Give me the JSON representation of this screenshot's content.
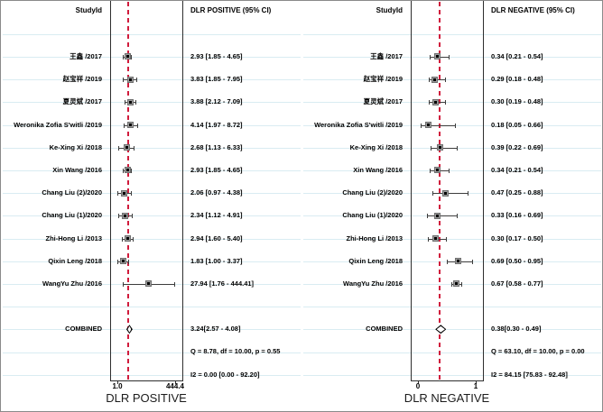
{
  "colors": {
    "ref_line": "#d01b3c",
    "gridline": "#d9ecf2",
    "box_border": "#2e2e2e",
    "ci_line": "#3d3d3d",
    "marker_fill": "#9c9c9c",
    "marker_center": "#000000"
  },
  "chart_data": {
    "type": "scatter",
    "subtype": "forest-plot",
    "panels": [
      {
        "id": "dlr-positive",
        "study_header": "StudyId",
        "value_header": "DLR POSITIVE (95% CI)",
        "axis": {
          "scale": "log",
          "min": 1.0,
          "max": 444.4,
          "tick_labels": [
            "1.0",
            "444.4"
          ],
          "title": "DLR POSITIVE"
        },
        "ref_line_value": 3.24,
        "studies": [
          {
            "label": "王鑫 /2017",
            "value": 2.93,
            "lo": 1.85,
            "hi": 4.65,
            "ci_text": "2.93 [1.85 - 4.65]"
          },
          {
            "label": "赵宝祥 /2019",
            "value": 3.83,
            "lo": 1.85,
            "hi": 7.95,
            "ci_text": "3.83 [1.85 - 7.95]"
          },
          {
            "label": "夏灵斌 /2017",
            "value": 3.88,
            "lo": 2.12,
            "hi": 7.09,
            "ci_text": "3.88 [2.12 - 7.09]"
          },
          {
            "label": "Weronika Zofia S'witli /2019",
            "value": 4.14,
            "lo": 1.97,
            "hi": 8.72,
            "ci_text": "4.14 [1.97 - 8.72]"
          },
          {
            "label": "Ke-Xing Xi /2018",
            "value": 2.68,
            "lo": 1.13,
            "hi": 6.33,
            "ci_text": "2.68 [1.13 - 6.33]"
          },
          {
            "label": "Xin Wang /2016",
            "value": 2.93,
            "lo": 1.85,
            "hi": 4.65,
            "ci_text": "2.93 [1.85 - 4.65]"
          },
          {
            "label": "Chang Liu (2)/2020",
            "value": 2.06,
            "lo": 0.97,
            "hi": 4.38,
            "ci_text": "2.06 [0.97 - 4.38]"
          },
          {
            "label": "Chang Liu (1)/2020",
            "value": 2.34,
            "lo": 1.12,
            "hi": 4.91,
            "ci_text": "2.34 [1.12 - 4.91]"
          },
          {
            "label": "Zhi-Hong Li /2013",
            "value": 2.94,
            "lo": 1.6,
            "hi": 5.4,
            "ci_text": "2.94 [1.60 - 5.40]"
          },
          {
            "label": "Qixin Leng /2018",
            "value": 1.83,
            "lo": 1.0,
            "hi": 3.37,
            "ci_text": "1.83 [1.00 - 3.37]"
          },
          {
            "label": "WangYu Zhu /2016",
            "value": 27.94,
            "lo": 1.76,
            "hi": 444.41,
            "ci_text": "27.94 [1.76 - 444.41]"
          }
        ],
        "combined": {
          "label": "COMBINED",
          "value": 3.24,
          "lo": 2.57,
          "hi": 4.08,
          "ci_text": "3.24[2.57 - 4.08]"
        },
        "stats": {
          "q_text": "Q =  8.78, df = 10.00, p =  0.55",
          "i2_text": "I2 = 0.00 [0.00 - 92.20]"
        }
      },
      {
        "id": "dlr-negative",
        "study_header": "StudyId",
        "value_header": "DLR NEGATIVE (95% CI)",
        "axis": {
          "scale": "linear",
          "min": 0,
          "max": 1,
          "tick_labels": [
            "0",
            "1"
          ],
          "title": "DLR NEGATIVE"
        },
        "ref_line_value": 0.38,
        "studies": [
          {
            "label": "王鑫 /2017",
            "value": 0.34,
            "lo": 0.21,
            "hi": 0.54,
            "ci_text": "0.34 [0.21 - 0.54]"
          },
          {
            "label": "赵宝祥 /2019",
            "value": 0.29,
            "lo": 0.18,
            "hi": 0.48,
            "ci_text": "0.29 [0.18 - 0.48]"
          },
          {
            "label": "夏灵斌 /2017",
            "value": 0.3,
            "lo": 0.19,
            "hi": 0.48,
            "ci_text": "0.30 [0.19 - 0.48]"
          },
          {
            "label": "Weronika Zofia S'witli /2019",
            "value": 0.18,
            "lo": 0.05,
            "hi": 0.66,
            "ci_text": "0.18 [0.05 - 0.66]"
          },
          {
            "label": "Ke-Xing Xi /2018",
            "value": 0.39,
            "lo": 0.22,
            "hi": 0.69,
            "ci_text": "0.39 [0.22 - 0.69]"
          },
          {
            "label": "Xin Wang /2016",
            "value": 0.34,
            "lo": 0.21,
            "hi": 0.54,
            "ci_text": "0.34 [0.21 - 0.54]"
          },
          {
            "label": "Chang Liu (2)/2020",
            "value": 0.47,
            "lo": 0.25,
            "hi": 0.88,
            "ci_text": "0.47 [0.25 - 0.88]"
          },
          {
            "label": "Chang Liu (1)/2020",
            "value": 0.33,
            "lo": 0.16,
            "hi": 0.69,
            "ci_text": "0.33 [0.16 - 0.69]"
          },
          {
            "label": "Zhi-Hong Li /2013",
            "value": 0.3,
            "lo": 0.17,
            "hi": 0.5,
            "ci_text": "0.30 [0.17 - 0.50]"
          },
          {
            "label": "Qixin Leng /2018",
            "value": 0.69,
            "lo": 0.5,
            "hi": 0.95,
            "ci_text": "0.69 [0.50 - 0.95]"
          },
          {
            "label": "WangYu Zhu /2016",
            "value": 0.67,
            "lo": 0.58,
            "hi": 0.77,
            "ci_text": "0.67 [0.58 - 0.77]"
          }
        ],
        "combined": {
          "label": "COMBINED",
          "value": 0.38,
          "lo": 0.3,
          "hi": 0.49,
          "ci_text": "0.38[0.30 - 0.49]"
        },
        "stats": {
          "q_text": "Q = 63.10, df = 10.00, p =  0.00",
          "i2_text": "I2 = 84.15 [75.83 - 92.48]"
        }
      }
    ]
  }
}
